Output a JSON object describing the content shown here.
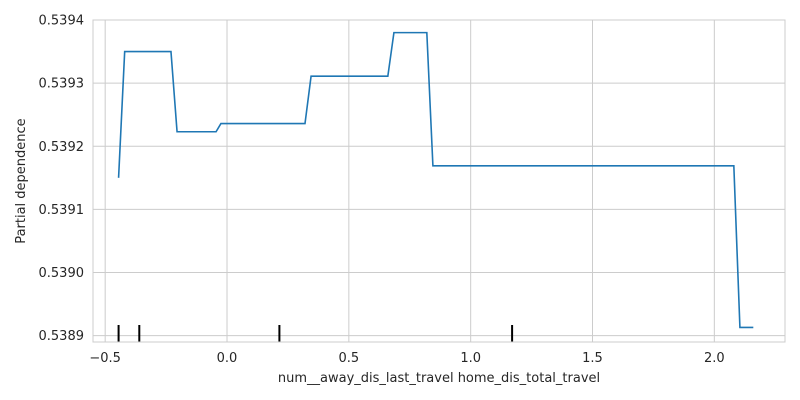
{
  "chart_data": {
    "type": "line",
    "xlabel": "num__away_dis_last_travel home_dis_total_travel",
    "ylabel": "Partial dependence",
    "xlim": [
      -0.55,
      2.29
    ],
    "ylim": [
      0.53889,
      0.5394
    ],
    "x_ticks": [
      -0.5,
      0.0,
      0.5,
      1.0,
      1.5,
      2.0
    ],
    "x_tick_labels": [
      "−0.5",
      "0.0",
      "0.5",
      "1.0",
      "1.5",
      "2.0"
    ],
    "y_ticks": [
      0.5389,
      0.539,
      0.5391,
      0.5392,
      0.5393,
      0.5394
    ],
    "y_tick_labels": [
      "0.5389",
      "0.5390",
      "0.5391",
      "0.5392",
      "0.5393",
      "0.5394"
    ],
    "grid": true,
    "line_color": "#1f77b4",
    "series": [
      {
        "x": [
          -0.445,
          -0.42,
          -0.23,
          -0.205,
          -0.045,
          -0.025,
          0.32,
          0.345,
          0.66,
          0.685,
          0.82,
          0.845,
          2.08,
          2.105,
          2.16
        ],
        "y": [
          0.53915,
          0.53935,
          0.53935,
          0.539223,
          0.539223,
          0.539236,
          0.539236,
          0.539311,
          0.539311,
          0.53938,
          0.53938,
          0.539169,
          0.539169,
          0.538913,
          0.538913
        ]
      }
    ],
    "rug": [
      -0.445,
      -0.36,
      0.215,
      1.17
    ]
  }
}
